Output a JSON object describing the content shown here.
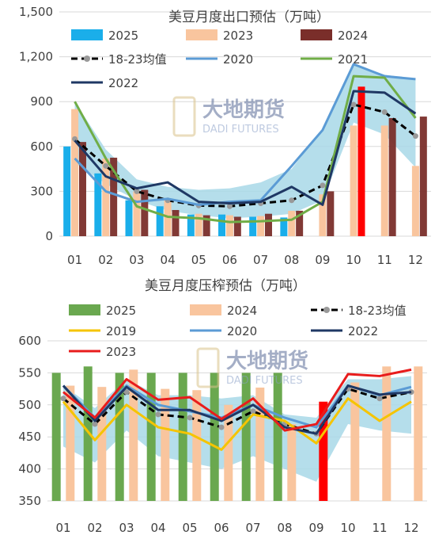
{
  "watermark": {
    "cn": "大地期货",
    "en": "DADI FUTURES"
  },
  "colors": {
    "band": "#a8d8e8",
    "c2025": "#1aaeea",
    "c2023": "#f9c59e",
    "c2024": "#7a2e2a",
    "cavg": "#000000",
    "c2019": "#f5c400",
    "c2020": "#5b9bd5",
    "c2021": "#70ad47",
    "c2022": "#1f3864",
    "c2023line": "#e81c1c",
    "green": "#6aa84f",
    "red": "#ff0000"
  },
  "chart_data": [
    {
      "type": "bar",
      "title": "美豆月度出口预估（万吨）",
      "categories": [
        "01",
        "02",
        "03",
        "04",
        "05",
        "06",
        "07",
        "08",
        "09",
        "10",
        "11",
        "12"
      ],
      "ylim": [
        0,
        1500
      ],
      "yticks": [
        "0",
        "300",
        "600",
        "900",
        "1,200",
        "1,500"
      ],
      "yticks_values": [
        0,
        300,
        600,
        900,
        1200,
        1500
      ],
      "band_label": "",
      "band_low": [
        490,
        350,
        240,
        170,
        140,
        120,
        130,
        150,
        240,
        760,
        680,
        460
      ],
      "band_high": [
        900,
        580,
        380,
        330,
        310,
        320,
        360,
        450,
        720,
        1150,
        1080,
        1050
      ],
      "bars": [
        {
          "name": "2025",
          "color": "c2025",
          "values": [
            600,
            420,
            240,
            200,
            145,
            145,
            130,
            125,
            null,
            null,
            null,
            null
          ]
        },
        {
          "name": "2023",
          "color": "c2023",
          "values": [
            850,
            520,
            300,
            250,
            150,
            140,
            135,
            170,
            280,
            740,
            740,
            470
          ]
        },
        {
          "name": "2024",
          "color": "c2024",
          "values": [
            630,
            525,
            310,
            175,
            140,
            130,
            150,
            170,
            300,
            1000,
            790,
            800
          ]
        }
      ],
      "highlight": {
        "series": "2024",
        "index": 9,
        "color": "red"
      },
      "lines": [
        {
          "name": "18-23均值",
          "color": "cavg",
          "dashed": true,
          "values": [
            650,
            470,
            300,
            240,
            205,
            200,
            220,
            240,
            340,
            880,
            830,
            670
          ]
        },
        {
          "name": "2020",
          "color": "c2020",
          "dashed": false,
          "values": [
            520,
            300,
            230,
            250,
            210,
            230,
            240,
            470,
            710,
            1150,
            1070,
            1050
          ]
        },
        {
          "name": "2021",
          "color": "c2021",
          "dashed": false,
          "values": [
            900,
            520,
            200,
            130,
            120,
            95,
            100,
            110,
            230,
            1070,
            1060,
            790
          ]
        },
        {
          "name": "2022",
          "color": "c2022",
          "dashed": false,
          "values": [
            640,
            400,
            320,
            360,
            230,
            220,
            230,
            330,
            210,
            970,
            960,
            820
          ]
        }
      ],
      "legend": [
        "2025",
        "2023",
        "2024",
        "18-23均值",
        "2020",
        "2021",
        "2022"
      ]
    },
    {
      "type": "bar",
      "title": "美豆月度压榨预估（万吨）",
      "categories": [
        "01",
        "02",
        "03",
        "04",
        "05",
        "06",
        "07",
        "08",
        "09",
        "10",
        "11",
        "12"
      ],
      "ylim": [
        350,
        600
      ],
      "yticks": [
        "350",
        "400",
        "450",
        "500",
        "550",
        "600"
      ],
      "yticks_values": [
        350,
        400,
        450,
        500,
        550,
        600
      ],
      "band_label": "",
      "band_low": [
        435,
        410,
        460,
        420,
        410,
        400,
        420,
        400,
        380,
        470,
        460,
        455
      ],
      "band_high": [
        530,
        495,
        540,
        515,
        515,
        510,
        515,
        485,
        480,
        540,
        540,
        545
      ],
      "bars": [
        {
          "name": "2025",
          "color": "green",
          "values": [
            550,
            560,
            550,
            550,
            550,
            550,
            550,
            550,
            null,
            null,
            null,
            null
          ]
        },
        {
          "name": "2024",
          "color": "c2023",
          "values": [
            530,
            528,
            555,
            525,
            523,
            500,
            527,
            470,
            505,
            535,
            560,
            560
          ]
        }
      ],
      "highlight": {
        "series": "2024",
        "index": 8,
        "color": "red"
      },
      "lines": [
        {
          "name": "18-23均值",
          "color": "cavg",
          "dashed": true,
          "values": [
            510,
            470,
            520,
            485,
            480,
            465,
            490,
            470,
            455,
            525,
            510,
            520
          ]
        },
        {
          "name": "2019",
          "color": "c2019",
          "dashed": false,
          "values": [
            505,
            445,
            500,
            465,
            455,
            430,
            485,
            475,
            440,
            510,
            475,
            505
          ]
        },
        {
          "name": "2020",
          "color": "c2020",
          "dashed": false,
          "values": [
            530,
            480,
            530,
            500,
            490,
            480,
            500,
            480,
            465,
            530,
            515,
            528
          ]
        },
        {
          "name": "2022",
          "color": "c2022",
          "dashed": false,
          "values": [
            530,
            475,
            528,
            492,
            492,
            475,
            500,
            465,
            455,
            530,
            516,
            520
          ]
        },
        {
          "name": "2023",
          "color": "c2023line",
          "dashed": false,
          "values": [
            520,
            480,
            540,
            508,
            512,
            478,
            510,
            460,
            470,
            548,
            545,
            555
          ]
        }
      ],
      "legend": [
        "2025",
        "2024",
        "18-23均值",
        "2019",
        "2020",
        "2022",
        "2023"
      ]
    }
  ]
}
